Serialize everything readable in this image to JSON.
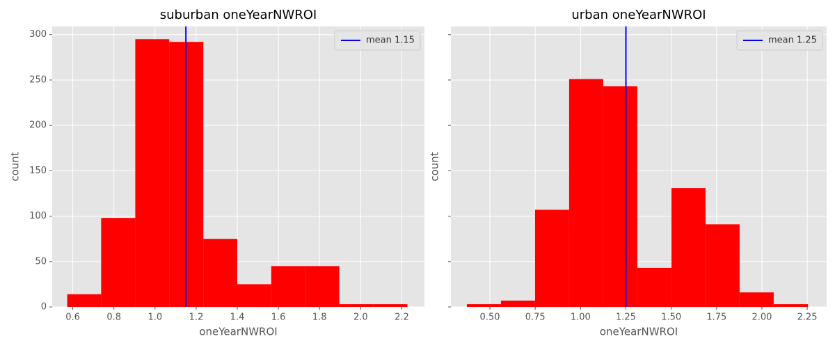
{
  "chart_data": [
    {
      "type": "histogram",
      "title": "suburban oneYearNWROI",
      "x_label": "oneYearNWROI",
      "y_label": "count",
      "bins": [
        0.573,
        0.738,
        0.904,
        1.069,
        1.235,
        1.4,
        1.565,
        1.731,
        1.896,
        2.062,
        2.227
      ],
      "values": [
        14,
        98,
        295,
        292,
        75,
        25,
        45,
        45,
        3,
        3
      ],
      "color": "#ff0000",
      "xlim": [
        0.5,
        2.31
      ],
      "ylim": [
        0,
        309
      ],
      "xticks": [
        0.6,
        0.8,
        {
          "value": 1,
          "label": "1.0"
        },
        1.2,
        1.4,
        1.6,
        1.8,
        {
          "value": 2,
          "label": "2.0"
        },
        2.2
      ],
      "yticks": [
        0,
        50,
        100,
        150,
        200,
        250,
        300
      ],
      "ytick_labels": true,
      "grid": true,
      "legend": "upper right",
      "mean_line": {
        "name": "mean 1.15",
        "value": 1.15,
        "color": "#0000ff"
      }
    },
    {
      "type": "histogram",
      "title": "urban oneYearNWROI",
      "x_label": "oneYearNWROI",
      "y_label": "count",
      "bins": [
        0.373,
        0.561,
        0.749,
        0.937,
        1.125,
        1.313,
        1.501,
        1.689,
        1.877,
        2.065,
        2.254
      ],
      "values": [
        3,
        7,
        107,
        251,
        243,
        43,
        131,
        91,
        16,
        3
      ],
      "color": "#ff0000",
      "xlim": [
        0.285,
        2.357
      ],
      "ylim": [
        0,
        309
      ],
      "xticks": [
        {
          "value": 0.5,
          "label": "0.50"
        },
        0.75,
        {
          "value": 1,
          "label": "1.00"
        },
        1.25,
        {
          "value": 1.5,
          "label": "1.50"
        },
        1.75,
        {
          "value": 2,
          "label": "2.00"
        },
        2.25
      ],
      "yticks": [
        0,
        50,
        100,
        150,
        200,
        250,
        300
      ],
      "ytick_labels": false,
      "grid": true,
      "legend": "upper right",
      "mean_line": {
        "name": "mean 1.25",
        "value": 1.25,
        "color": "#0000ff"
      }
    }
  ]
}
